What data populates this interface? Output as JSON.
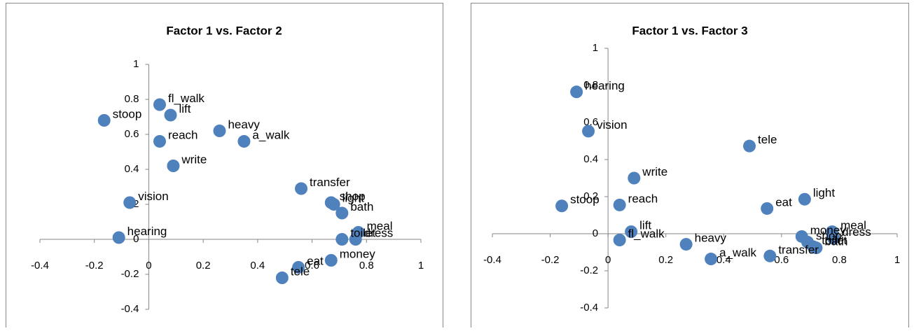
{
  "chart_data": [
    {
      "type": "scatter",
      "title": "Factor 1 vs. Factor 2",
      "color": "#4f81bd",
      "xlim": [
        -0.4,
        1
      ],
      "ylim": [
        -0.4,
        1
      ],
      "xticks": [
        -0.4,
        -0.2,
        0,
        0.2,
        0.4,
        0.6,
        0.8,
        1
      ],
      "yticks": [
        -0.4,
        -0.2,
        0,
        0.2,
        0.4,
        0.6,
        0.8,
        1
      ],
      "labels": [
        "stoop",
        "fl_walk",
        "lift",
        "reach",
        "heavy",
        "a_walk",
        "write",
        "transfer",
        "shop",
        "light",
        "bath",
        "vision",
        "hearing",
        "meal",
        "toilet",
        "dress",
        "money",
        "eat",
        "tele"
      ],
      "x": [
        -0.164,
        0.04,
        0.08,
        0.04,
        0.26,
        0.35,
        0.09,
        0.56,
        0.67,
        0.68,
        0.71,
        -0.07,
        -0.11,
        0.77,
        0.71,
        0.76,
        0.67,
        0.55,
        0.49
      ],
      "values": [
        0.68,
        0.77,
        0.71,
        0.56,
        0.62,
        0.56,
        0.42,
        0.29,
        0.21,
        0.2,
        0.15,
        0.21,
        0.01,
        0.04,
        0.0,
        0.0,
        -0.12,
        -0.16,
        -0.22
      ]
    },
    {
      "type": "scatter",
      "title": "Factor 1 vs. Factor 3",
      "color": "#4f81bd",
      "xlim": [
        -0.4,
        1
      ],
      "ylim": [
        -0.4,
        1
      ],
      "xticks": [
        -0.4,
        -0.2,
        0,
        0.2,
        0.4,
        0.6,
        0.8,
        1
      ],
      "yticks": [
        -0.4,
        -0.2,
        0,
        0.2,
        0.4,
        0.6,
        0.8,
        1
      ],
      "labels": [
        "hearing",
        "vision",
        "tele",
        "write",
        "stoop",
        "reach",
        "eat",
        "light",
        "lift",
        "fl_walk",
        "heavy",
        "a_walk",
        "transfer",
        "money",
        "meal",
        "shop",
        "bath",
        "dress",
        "toilet"
      ],
      "x": [
        -0.109,
        -0.068,
        0.489,
        0.09,
        -0.16,
        0.04,
        0.55,
        0.68,
        0.08,
        0.04,
        0.27,
        0.356,
        0.56,
        0.67,
        0.775,
        0.69,
        0.72,
        0.78,
        0.71
      ],
      "values": [
        0.765,
        0.553,
        0.473,
        0.3,
        0.15,
        0.155,
        0.136,
        0.186,
        0.011,
        -0.034,
        -0.057,
        -0.136,
        -0.12,
        -0.015,
        0.011,
        -0.045,
        -0.076,
        -0.025,
        -0.07
      ]
    }
  ]
}
